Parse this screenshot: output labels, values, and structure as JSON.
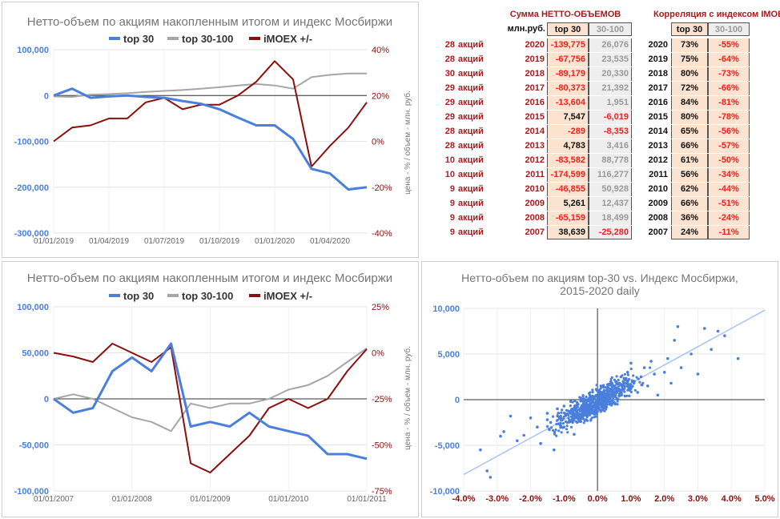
{
  "colors": {
    "top30": "#4a7fdc",
    "top30_100": "#a6a6a6",
    "imoex": "#8b0f0f",
    "neg_text": "#e8231f",
    "pos_text": "#111111",
    "cell_bg": "#fce3cf",
    "gray_cell_bg": "#eeeeee",
    "header_red": "#a61c1c"
  },
  "legend": {
    "top30": "top 30",
    "top30_100": "top 30-100",
    "imoex": "iMOEX +/-"
  },
  "chart1": {
    "title": "Нетто-объем по акциям накопленным итогом и индекс Мосбиржи",
    "y_left_ticks": [
      "100,000",
      "0",
      "-100,000",
      "-200,000",
      "-300,000"
    ],
    "y_right_ticks": [
      "40%",
      "20%",
      "0%",
      "-20%",
      "-40%"
    ],
    "x_ticks": [
      "01/01/2019",
      "01/04/2019",
      "01/07/2019",
      "01/10/2019",
      "01/01/2020",
      "01/04/2020"
    ],
    "y_right_label": "цена - % / объем - млн. руб."
  },
  "chart2": {
    "title": "Нетто-объем по акциям накопленным итогом и индекс Мосбиржи",
    "y_left_ticks": [
      "100,000",
      "50,000",
      "0",
      "-50,000",
      "-100,000"
    ],
    "y_right_ticks": [
      "25%",
      "0%",
      "-25%",
      "-50%",
      "-75%"
    ],
    "x_ticks": [
      "01/01/2007",
      "01/01/2008",
      "01/01/2009",
      "01/01/2010",
      "01/01/2011"
    ],
    "y_right_label": "цена - % / объем - млн. руб."
  },
  "chart3": {
    "title_line1": "Нетто-объем по акциям top-30  vs.  Индекс Мосбиржи,",
    "title_line2": "2015-2020 daily",
    "y_ticks": [
      "10,000",
      "5,000",
      "0",
      "-5,000",
      "-10,000"
    ],
    "x_ticks": [
      "-4.0%",
      "-3.0%",
      "-2.0%",
      "-1.0%",
      "0.0%",
      "1.0%",
      "2.0%",
      "3.0%",
      "4.0%",
      "5.0%"
    ]
  },
  "table_sum": {
    "title": "Сумма НЕТТО-ОБЪЕМОВ",
    "unit": "млн.руб.",
    "headers": [
      "top 30",
      "30-100"
    ],
    "rows": [
      {
        "count": "28",
        "word": "акций",
        "year": "2020",
        "top30": "-139,775",
        "t30_100": "26,076"
      },
      {
        "count": "28",
        "word": "акций",
        "year": "2019",
        "top30": "-67,756",
        "t30_100": "23,535"
      },
      {
        "count": "30",
        "word": "акций",
        "year": "2018",
        "top30": "-89,179",
        "t30_100": "20,330"
      },
      {
        "count": "29",
        "word": "акций",
        "year": "2017",
        "top30": "-80,373",
        "t30_100": "21,392"
      },
      {
        "count": "29",
        "word": "акций",
        "year": "2016",
        "top30": "-13,604",
        "t30_100": "1,951"
      },
      {
        "count": "29",
        "word": "акций",
        "year": "2015",
        "top30": "7,547",
        "t30_100": "-6,019"
      },
      {
        "count": "28",
        "word": "акций",
        "year": "2014",
        "top30": "-289",
        "t30_100": "-8,353"
      },
      {
        "count": "28",
        "word": "акций",
        "year": "2013",
        "top30": "4,783",
        "t30_100": "3,416"
      },
      {
        "count": "10",
        "word": "акций",
        "year": "2012",
        "top30": "-83,582",
        "t30_100": "88,778"
      },
      {
        "count": "10",
        "word": "акций",
        "year": "2011",
        "top30": "-174,599",
        "t30_100": "116,277"
      },
      {
        "count": "9",
        "word": "акций",
        "year": "2010",
        "top30": "-46,855",
        "t30_100": "50,928"
      },
      {
        "count": "9",
        "word": "акций",
        "year": "2009",
        "top30": "5,261",
        "t30_100": "12,437"
      },
      {
        "count": "9",
        "word": "акций",
        "year": "2008",
        "top30": "-65,159",
        "t30_100": "18,499"
      },
      {
        "count": "9",
        "word": "акций",
        "year": "2007",
        "top30": "38,639",
        "t30_100": "-25,280"
      }
    ]
  },
  "table_corr": {
    "title": "Корреляция с индексом IMOEX",
    "headers": [
      "top 30",
      "30-100"
    ],
    "rows": [
      {
        "year": "2020",
        "top30": "73%",
        "t30_100": "-55%"
      },
      {
        "year": "2019",
        "top30": "75%",
        "t30_100": "-64%"
      },
      {
        "year": "2018",
        "top30": "80%",
        "t30_100": "-73%"
      },
      {
        "year": "2017",
        "top30": "72%",
        "t30_100": "-66%"
      },
      {
        "year": "2016",
        "top30": "84%",
        "t30_100": "-81%"
      },
      {
        "year": "2015",
        "top30": "80%",
        "t30_100": "-78%"
      },
      {
        "year": "2014",
        "top30": "65%",
        "t30_100": "-56%"
      },
      {
        "year": "2013",
        "top30": "66%",
        "t30_100": "-57%"
      },
      {
        "year": "2012",
        "top30": "61%",
        "t30_100": "-50%"
      },
      {
        "year": "2011",
        "top30": "56%",
        "t30_100": "-34%"
      },
      {
        "year": "2010",
        "top30": "62%",
        "t30_100": "-44%"
      },
      {
        "year": "2009",
        "top30": "66%",
        "t30_100": "-51%"
      },
      {
        "year": "2008",
        "top30": "36%",
        "t30_100": "-24%"
      },
      {
        "year": "2007",
        "top30": "24%",
        "t30_100": "-11%"
      }
    ]
  },
  "chart_data": [
    {
      "type": "line",
      "title": "Нетто-объем по акциям накопленным итогом и индекс Мосбиржи",
      "x_range": [
        "01/01/2019",
        "01/06/2020"
      ],
      "ylim_left": [
        -300000,
        100000
      ],
      "ylim_right": [
        -40,
        40
      ],
      "series": [
        {
          "name": "top 30",
          "axis": "left",
          "x": [
            "01/01/2019",
            "01/02/2019",
            "01/03/2019",
            "01/04/2019",
            "01/05/2019",
            "01/06/2019",
            "01/07/2019",
            "01/08/2019",
            "01/09/2019",
            "01/10/2019",
            "01/11/2019",
            "01/12/2019",
            "01/01/2020",
            "01/02/2020",
            "01/03/2020",
            "01/04/2020",
            "01/05/2020",
            "01/06/2020"
          ],
          "values": [
            0,
            15000,
            -5000,
            -2000,
            0,
            -3000,
            -5000,
            -12000,
            -18000,
            -30000,
            -48000,
            -65000,
            -65000,
            -95000,
            -160000,
            -170000,
            -205000,
            -200000
          ]
        },
        {
          "name": "top 30-100",
          "axis": "left",
          "x": [
            "01/01/2019",
            "01/02/2019",
            "01/03/2019",
            "01/04/2019",
            "01/05/2019",
            "01/06/2019",
            "01/07/2019",
            "01/08/2019",
            "01/09/2019",
            "01/10/2019",
            "01/11/2019",
            "01/12/2019",
            "01/01/2020",
            "01/02/2020",
            "01/03/2020",
            "01/04/2020",
            "01/05/2020",
            "01/06/2020"
          ],
          "values": [
            -2000,
            -3000,
            2000,
            3000,
            5000,
            8000,
            10000,
            12000,
            15000,
            18000,
            22000,
            25000,
            22000,
            15000,
            40000,
            45000,
            48000,
            48000
          ]
        },
        {
          "name": "iMOEX +/-",
          "axis": "right",
          "x": [
            "01/01/2019",
            "01/02/2019",
            "01/03/2019",
            "01/04/2019",
            "01/05/2019",
            "01/06/2019",
            "01/07/2019",
            "01/08/2019",
            "01/09/2019",
            "01/10/2019",
            "01/11/2019",
            "01/12/2019",
            "01/01/2020",
            "01/02/2020",
            "01/03/2020",
            "01/04/2020",
            "01/05/2020",
            "01/06/2020"
          ],
          "values": [
            0,
            6,
            7,
            10,
            10,
            17,
            19,
            14,
            16,
            16,
            20,
            26,
            35,
            27,
            -11,
            -2,
            6,
            17
          ]
        }
      ]
    },
    {
      "type": "line",
      "title": "Нетто-объем по акциям накопленным итогом и индекс Мосбиржи",
      "x_range": [
        "01/01/2007",
        "01/01/2011"
      ],
      "ylim_left": [
        -100000,
        100000
      ],
      "ylim_right": [
        -75,
        25
      ],
      "series": [
        {
          "name": "top 30",
          "axis": "left",
          "x": [
            "01/01/2007",
            "01/04/2007",
            "01/07/2007",
            "01/10/2007",
            "01/01/2008",
            "01/04/2008",
            "01/07/2008",
            "01/10/2008",
            "01/01/2009",
            "01/04/2009",
            "01/07/2009",
            "01/10/2009",
            "01/01/2010",
            "01/04/2010",
            "01/07/2010",
            "01/10/2010",
            "01/01/2011"
          ],
          "values": [
            0,
            -15000,
            -10000,
            30000,
            45000,
            30000,
            60000,
            -30000,
            -25000,
            -30000,
            -15000,
            -30000,
            -35000,
            -40000,
            -60000,
            -60000,
            -65000
          ]
        },
        {
          "name": "top 30-100",
          "axis": "left",
          "x": [
            "01/01/2007",
            "01/04/2007",
            "01/07/2007",
            "01/10/2007",
            "01/01/2008",
            "01/04/2008",
            "01/07/2008",
            "01/10/2008",
            "01/01/2009",
            "01/04/2009",
            "01/07/2009",
            "01/10/2009",
            "01/01/2010",
            "01/04/2010",
            "01/07/2010",
            "01/10/2010",
            "01/01/2011"
          ],
          "values": [
            0,
            5000,
            0,
            -10000,
            -20000,
            -25000,
            -35000,
            -5000,
            -10000,
            -5000,
            -5000,
            0,
            10000,
            15000,
            25000,
            40000,
            55000
          ]
        },
        {
          "name": "iMOEX +/-",
          "axis": "right",
          "x": [
            "01/01/2007",
            "01/04/2007",
            "01/07/2007",
            "01/10/2007",
            "01/01/2008",
            "01/04/2008",
            "01/07/2008",
            "01/10/2008",
            "01/01/2009",
            "01/04/2009",
            "01/07/2009",
            "01/10/2009",
            "01/01/2010",
            "01/04/2010",
            "01/07/2010",
            "01/10/2010",
            "01/01/2011"
          ],
          "values": [
            0,
            -2,
            -5,
            5,
            0,
            -5,
            3,
            -60,
            -65,
            -55,
            -45,
            -30,
            -25,
            -30,
            -25,
            -10,
            2
          ]
        }
      ]
    },
    {
      "type": "scatter",
      "title": "Нетто-объем по акциям top-30  vs.  Индекс Мосбиржи, 2015-2020 daily",
      "xlim": [
        -4.0,
        5.0
      ],
      "ylim": [
        -10000,
        10000
      ],
      "trendline": {
        "slope": 2000,
        "intercept": -200
      },
      "points": [
        [
          -3.5,
          -5500
        ],
        [
          -3.3,
          -7800
        ],
        [
          -3.2,
          -8500
        ],
        [
          -2.9,
          -4000
        ],
        [
          -2.8,
          -3500
        ],
        [
          -2.6,
          -1800
        ],
        [
          -2.4,
          -4500
        ],
        [
          -2.2,
          -3900
        ],
        [
          -2.0,
          -2000
        ],
        [
          -1.8,
          -3000
        ],
        [
          -1.7,
          -4800
        ],
        [
          -1.5,
          -2200
        ],
        [
          -1.5,
          -1500
        ],
        [
          -1.4,
          -2500
        ],
        [
          -1.3,
          -5500
        ],
        [
          -1.2,
          -1000
        ],
        [
          -1.1,
          -1800
        ],
        [
          -1.0,
          -3000
        ],
        [
          -1.0,
          -700
        ],
        [
          -0.9,
          -2500
        ],
        [
          -0.8,
          -1500
        ],
        [
          -0.8,
          -200
        ],
        [
          -0.7,
          -1000
        ],
        [
          -0.7,
          -3800
        ],
        [
          -0.6,
          -1800
        ],
        [
          -0.6,
          -400
        ],
        [
          -0.5,
          -900
        ],
        [
          -0.5,
          -2400
        ],
        [
          -0.4,
          -600
        ],
        [
          -0.4,
          -1500
        ],
        [
          -0.3,
          0
        ],
        [
          -0.3,
          -1000
        ],
        [
          -0.2,
          -500
        ],
        [
          -0.2,
          300
        ],
        [
          -0.1,
          -1200
        ],
        [
          -0.1,
          200
        ],
        [
          0.0,
          -500
        ],
        [
          0.0,
          500
        ],
        [
          0.1,
          0
        ],
        [
          0.1,
          1500
        ],
        [
          0.2,
          800
        ],
        [
          0.2,
          -800
        ],
        [
          0.3,
          1200
        ],
        [
          0.3,
          300
        ],
        [
          0.4,
          2000
        ],
        [
          0.4,
          600
        ],
        [
          0.5,
          1500
        ],
        [
          0.5,
          -300
        ],
        [
          0.6,
          1000
        ],
        [
          0.7,
          2500
        ],
        [
          0.7,
          500
        ],
        [
          0.8,
          1800
        ],
        [
          0.9,
          3000
        ],
        [
          1.0,
          1200
        ],
        [
          1.0,
          4000
        ],
        [
          1.1,
          2000
        ],
        [
          1.2,
          800
        ],
        [
          1.3,
          2500
        ],
        [
          1.4,
          3500
        ],
        [
          1.5,
          1500
        ],
        [
          1.6,
          4200
        ],
        [
          1.7,
          2800
        ],
        [
          1.8,
          500
        ],
        [
          2.0,
          3000
        ],
        [
          2.1,
          4500
        ],
        [
          2.2,
          1800
        ],
        [
          2.3,
          6500
        ],
        [
          2.4,
          8000
        ],
        [
          2.5,
          3500
        ],
        [
          2.8,
          5000
        ],
        [
          3.0,
          2800
        ],
        [
          3.2,
          7800
        ],
        [
          3.4,
          5500
        ],
        [
          3.6,
          7500
        ],
        [
          3.8,
          7000
        ],
        [
          4.2,
          4500
        ]
      ]
    }
  ]
}
